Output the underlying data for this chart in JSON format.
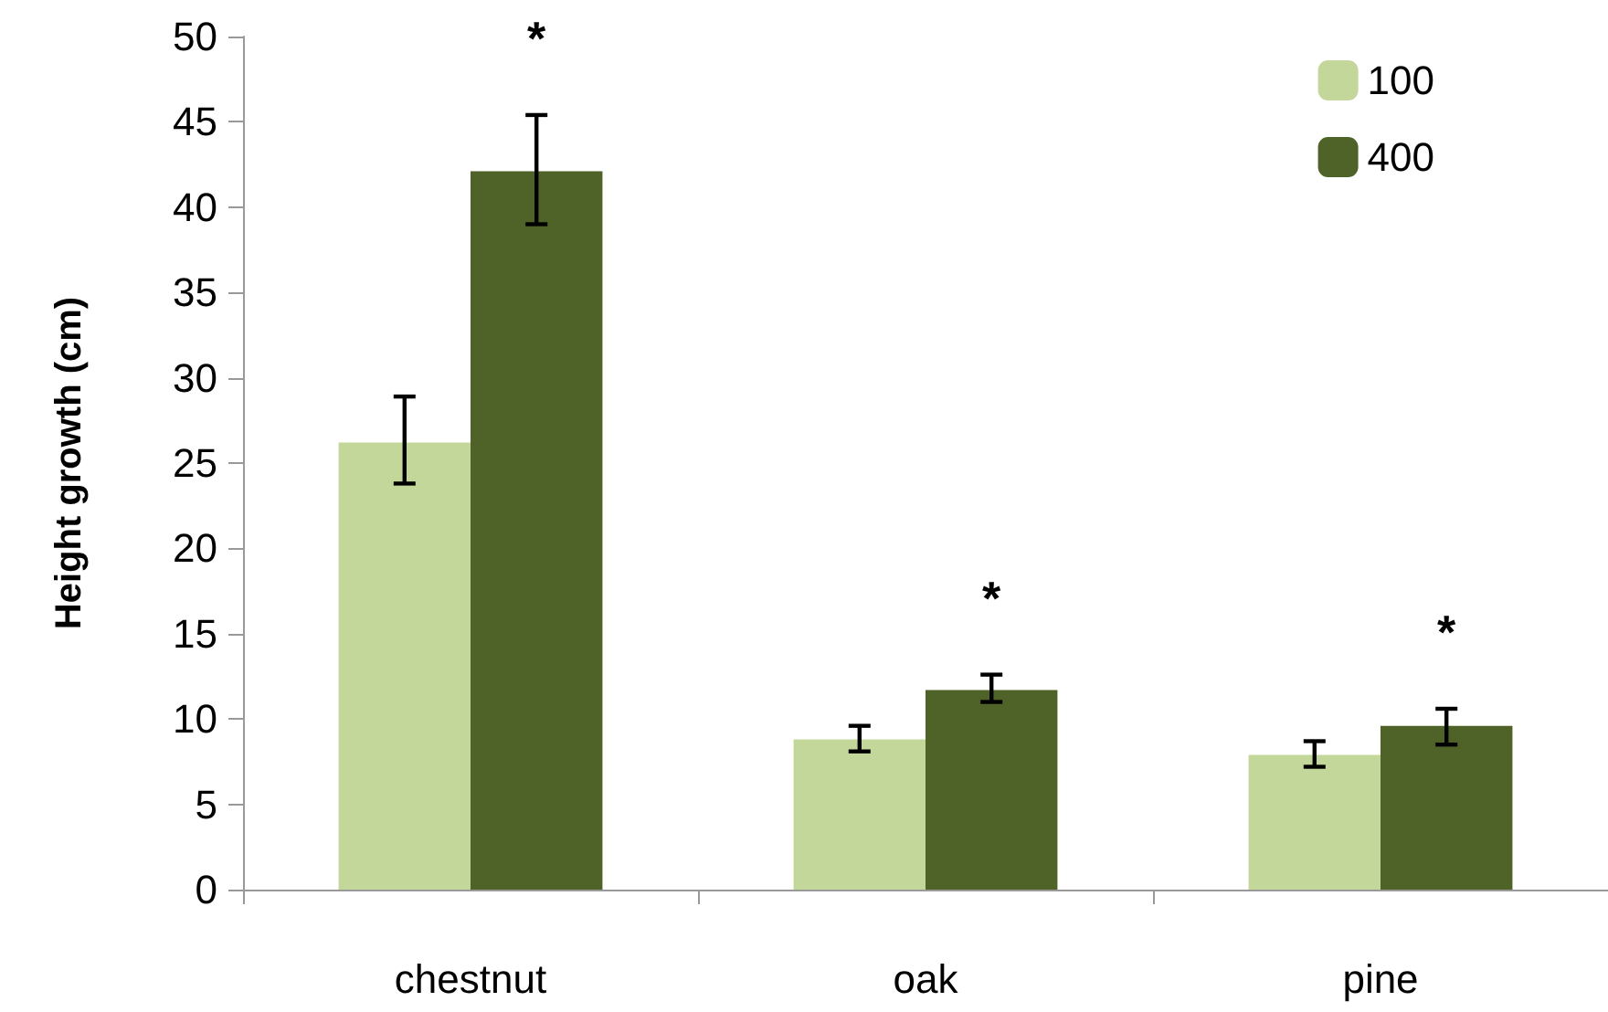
{
  "chart_data": {
    "type": "bar",
    "ylabel": "Height growth (cm)",
    "categories": [
      "chestnut",
      "oak",
      "pine"
    ],
    "series": [
      {
        "name": "100",
        "color": "#c4d79b",
        "values": [
          26.2,
          8.8,
          7.9
        ],
        "errors": [
          [
            23.8,
            28.9
          ],
          [
            8.1,
            9.6
          ],
          [
            7.2,
            8.7
          ]
        ]
      },
      {
        "name": "400",
        "color": "#4f6228",
        "values": [
          42.1,
          11.7,
          9.6
        ],
        "errors": [
          [
            39.0,
            45.4
          ],
          [
            11.0,
            12.6
          ],
          [
            8.5,
            10.6
          ]
        ]
      }
    ],
    "ylim": [
      0,
      50
    ],
    "yticks": [
      0,
      5,
      10,
      15,
      20,
      25,
      30,
      35,
      40,
      45,
      50
    ],
    "grid": false,
    "legend": "top right",
    "annotations": [
      "*",
      "*",
      "*"
    ]
  }
}
